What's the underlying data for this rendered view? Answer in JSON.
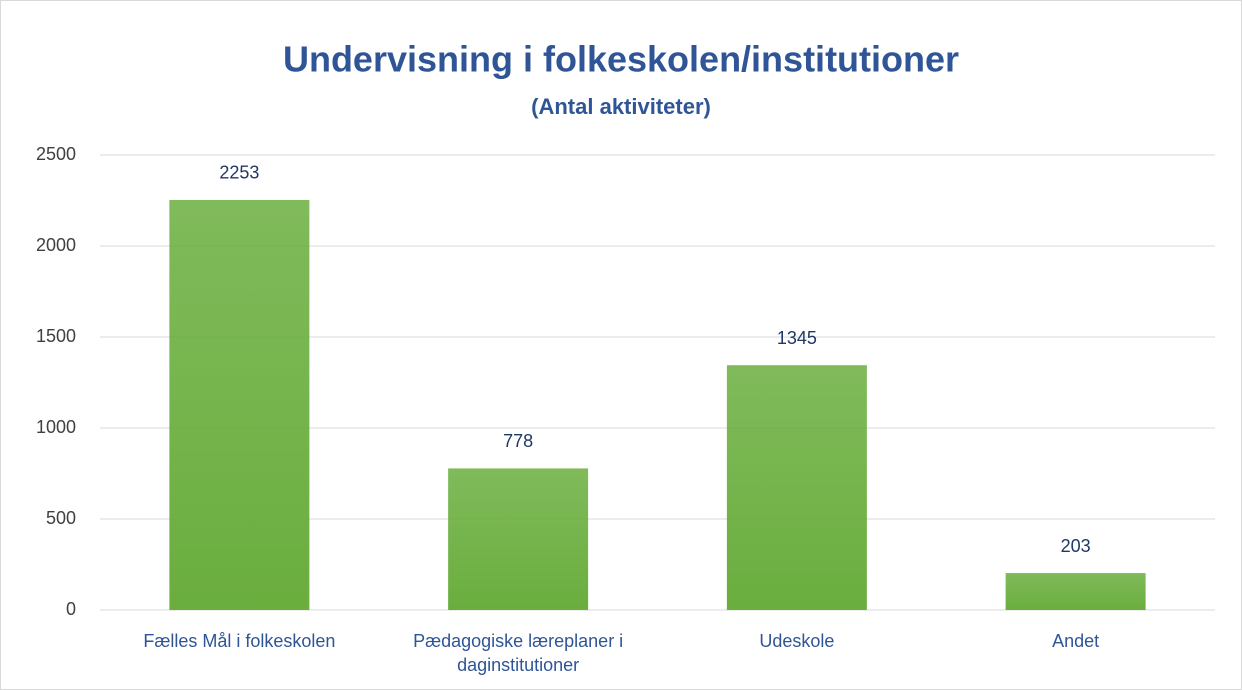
{
  "chart_data": {
    "type": "bar",
    "title": "Undervisning i folkeskolen/institutioner",
    "subtitle": "(Antal aktiviteter)",
    "categories": [
      "Fælles Mål i folkeskolen",
      "Pædagogiske læreplaner i daginstitutioner",
      "Udeskole",
      "Andet"
    ],
    "values": [
      2253,
      778,
      1345,
      203
    ],
    "color": "#6aae3e",
    "ylim": [
      0,
      2500
    ],
    "yticks": [
      0,
      500,
      1000,
      1500,
      2000,
      2500
    ],
    "grid": true
  }
}
